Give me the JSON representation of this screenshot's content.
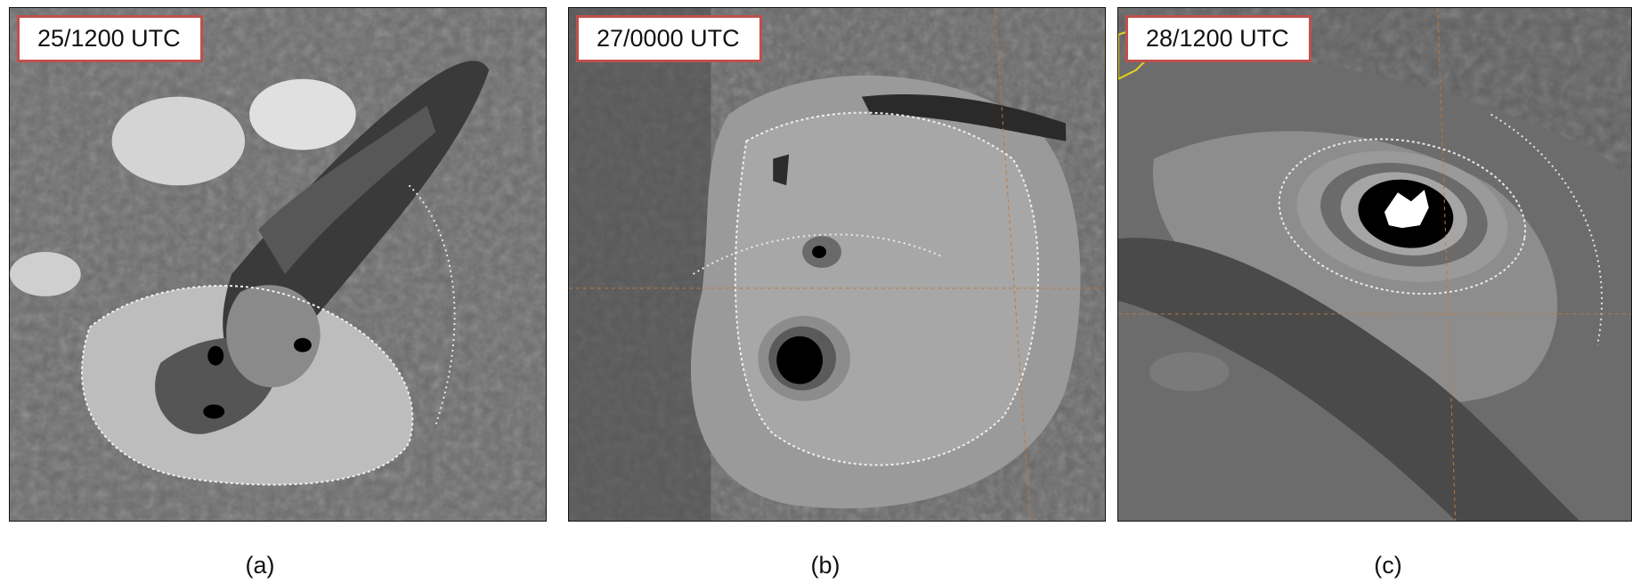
{
  "panels": [
    {
      "id": "a",
      "timestamp": "25/1200 UTC",
      "caption": "(a)",
      "description": "disorganized convective cloud clusters"
    },
    {
      "id": "b",
      "timestamp": "27/0000 UTC",
      "caption": "(b)",
      "description": "developing cyclone with emerging core"
    },
    {
      "id": "c",
      "timestamp": "28/1200 UTC",
      "caption": "(c)",
      "description": "mature cyclone with well-defined eye"
    }
  ],
  "colors": {
    "label_border": "#c0504d",
    "coastline": "#e6d21e",
    "grid_line": "#c0783c"
  }
}
